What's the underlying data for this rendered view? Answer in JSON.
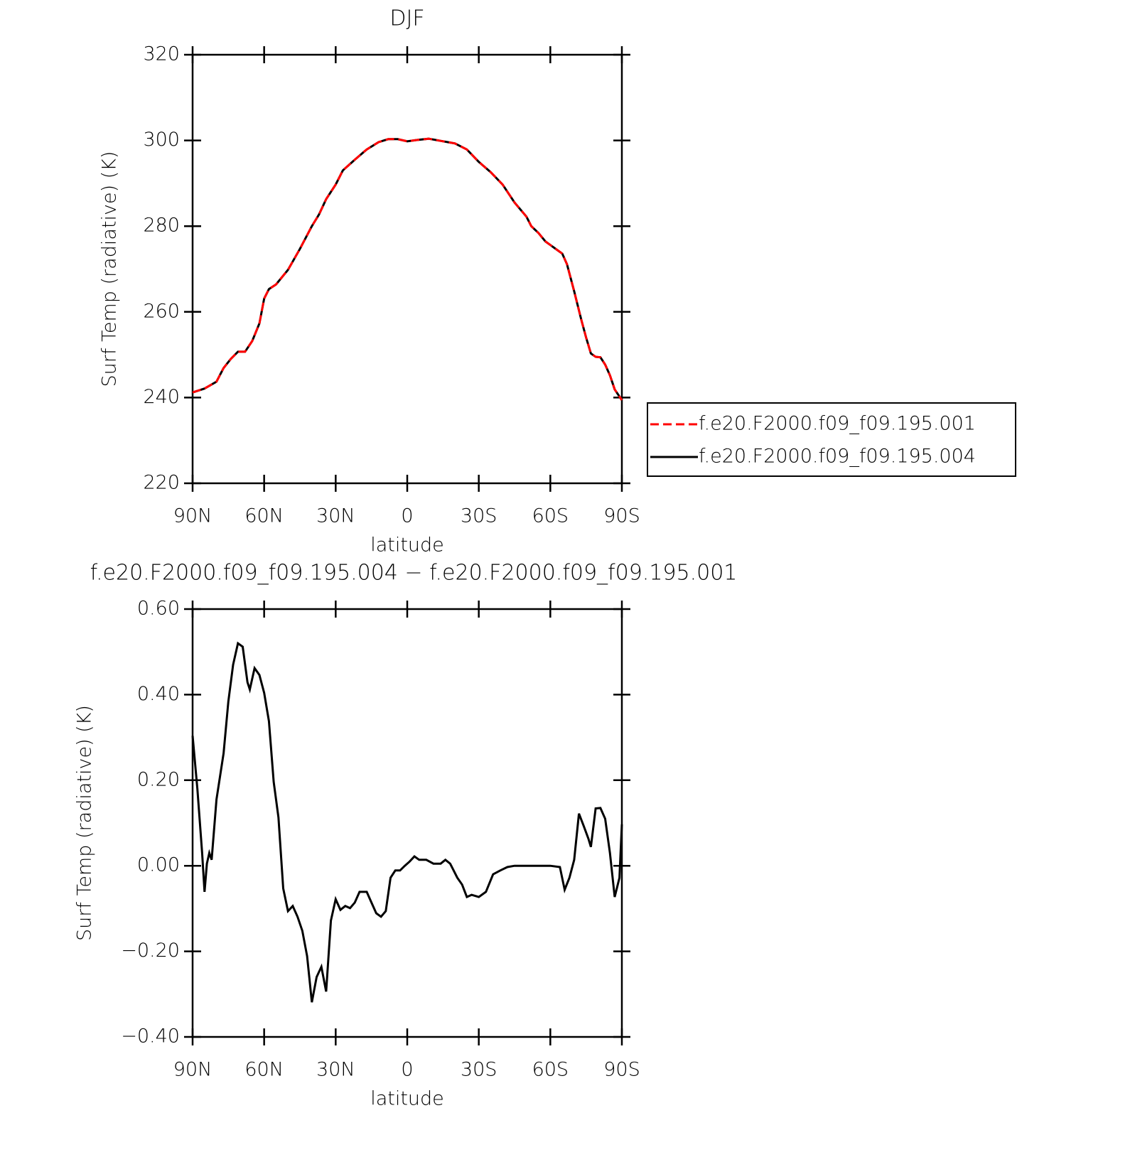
{
  "chart_data": [
    {
      "type": "line",
      "title": "DJF",
      "ylabel": "Surf Temp (radiative) (K)",
      "xlabel": "latitude",
      "xlim": [
        90,
        -90
      ],
      "xticks": [
        {
          "value": 90,
          "label": "90N"
        },
        {
          "value": 60,
          "label": "60N"
        },
        {
          "value": 30,
          "label": "30N"
        },
        0,
        {
          "value": -30,
          "label": "30S"
        },
        {
          "value": -60,
          "label": "60S"
        },
        {
          "value": -90,
          "label": "90S"
        }
      ],
      "ylim": [
        220,
        320
      ],
      "yticks": [
        220,
        240,
        260,
        280,
        300,
        320
      ],
      "legend": "right",
      "x": [
        90,
        85,
        80,
        77,
        74,
        71,
        68,
        65,
        62,
        60,
        58,
        55,
        50,
        45,
        40,
        37,
        34,
        30,
        27,
        22,
        17,
        12,
        8,
        4,
        0,
        -4,
        -9,
        -14,
        -20,
        -25,
        -30,
        -35,
        -40,
        -45,
        -50,
        -52,
        -55,
        -58,
        -60,
        -63,
        -65,
        -67,
        -70,
        -73,
        -75,
        -77,
        -79,
        -81,
        -83,
        -85,
        -87,
        -90
      ],
      "series": [
        {
          "name": "f.e20.F2000.f09_f09.195.001",
          "color": "#ff0000",
          "line_style": "dashed",
          "values": [
            241.2,
            242.1,
            243.7,
            246.9,
            249.0,
            250.7,
            250.7,
            253.2,
            257.3,
            263.1,
            265.3,
            266.4,
            269.8,
            274.7,
            280.0,
            282.7,
            286.3,
            289.7,
            293.0,
            295.5,
            297.9,
            299.6,
            300.3,
            300.3,
            299.8,
            300.1,
            300.4,
            299.9,
            299.3,
            297.9,
            295.0,
            292.6,
            289.7,
            285.5,
            282.2,
            280.0,
            278.4,
            276.4,
            275.6,
            274.4,
            273.6,
            271.1,
            264.8,
            258.1,
            254.0,
            250.3,
            249.5,
            249.4,
            247.7,
            245.2,
            241.9,
            239.4
          ]
        },
        {
          "name": "f.e20.F2000.f09_f09.195.004",
          "color": "#000000",
          "line_style": "solid",
          "values": [
            241.2,
            242.1,
            243.7,
            246.9,
            249.0,
            250.7,
            250.7,
            253.2,
            257.3,
            263.1,
            265.3,
            266.4,
            269.8,
            274.7,
            280.0,
            282.7,
            286.3,
            289.7,
            293.0,
            295.5,
            297.9,
            299.6,
            300.3,
            300.3,
            299.8,
            300.1,
            300.4,
            299.9,
            299.3,
            297.9,
            295.0,
            292.6,
            289.7,
            285.5,
            282.2,
            280.0,
            278.4,
            276.4,
            275.6,
            274.4,
            273.6,
            271.1,
            264.8,
            258.1,
            254.0,
            250.3,
            249.5,
            249.4,
            247.7,
            245.2,
            241.9,
            239.4
          ]
        }
      ]
    },
    {
      "type": "line",
      "title": "f.e20.F2000.f09_f09.195.004 − f.e20.F2000.f09_f09.195.001",
      "ylabel": "Surf Temp (radiative) (K)",
      "xlabel": "latitude",
      "xlim": [
        90,
        -90
      ],
      "xticks": [
        {
          "value": 90,
          "label": "90N"
        },
        {
          "value": 60,
          "label": "60N"
        },
        {
          "value": 30,
          "label": "30N"
        },
        0,
        {
          "value": -30,
          "label": "30S"
        },
        {
          "value": -60,
          "label": "60S"
        },
        {
          "value": -90,
          "label": "90S"
        }
      ],
      "ylim": [
        -0.4,
        0.6
      ],
      "yticks": [
        {
          "value": -0.4,
          "label": "−0.40"
        },
        {
          "value": -0.2,
          "label": "−0.20"
        },
        {
          "value": 0,
          "label": "0.00"
        },
        {
          "value": 0.2,
          "label": "0.20"
        },
        {
          "value": 0.4,
          "label": "0.40"
        },
        {
          "value": 0.6,
          "label": "0.60"
        }
      ],
      "color": "#000000",
      "x": [
        90,
        88,
        86,
        85,
        84,
        83,
        82,
        80,
        77,
        75,
        73,
        71,
        69,
        67,
        66,
        64,
        62,
        60,
        58,
        56,
        54,
        52,
        50,
        48,
        46,
        44,
        42,
        40,
        38,
        36,
        34,
        32,
        30,
        28,
        26,
        24,
        22,
        20,
        17,
        15,
        13,
        11,
        9,
        7,
        5,
        3,
        1,
        -1,
        -3,
        -5,
        -8,
        -11,
        -14,
        -16,
        -18,
        -21,
        -23,
        -25,
        -27,
        -30,
        -33,
        -36,
        -39,
        -42,
        -45,
        -50,
        -55,
        -60,
        -64,
        -66,
        -68,
        -70,
        -72,
        -74,
        -76,
        -77,
        -79,
        -81,
        -83,
        -85,
        -87,
        -89,
        -90
      ],
      "values": [
        0.304,
        0.18,
        0.03,
        -0.061,
        0.005,
        0.03,
        0.014,
        0.155,
        0.263,
        0.384,
        0.47,
        0.52,
        0.512,
        0.429,
        0.412,
        0.462,
        0.446,
        0.404,
        0.338,
        0.196,
        0.113,
        -0.053,
        -0.106,
        -0.094,
        -0.119,
        -0.152,
        -0.211,
        -0.319,
        -0.26,
        -0.236,
        -0.294,
        -0.128,
        -0.078,
        -0.103,
        -0.094,
        -0.099,
        -0.086,
        -0.061,
        -0.061,
        -0.086,
        -0.111,
        -0.119,
        -0.106,
        -0.028,
        -0.011,
        -0.011,
        0.0,
        0.01,
        0.022,
        0.014,
        0.014,
        0.005,
        0.005,
        0.014,
        0.005,
        -0.028,
        -0.044,
        -0.073,
        -0.068,
        -0.073,
        -0.061,
        -0.02,
        -0.011,
        -0.003,
        0.0,
        0.0,
        0.0,
        0.0,
        -0.003,
        -0.056,
        -0.028,
        0.014,
        0.122,
        0.093,
        0.063,
        0.044,
        0.134,
        0.135,
        0.11,
        0.03,
        -0.073,
        -0.028,
        0.097
      ]
    }
  ]
}
